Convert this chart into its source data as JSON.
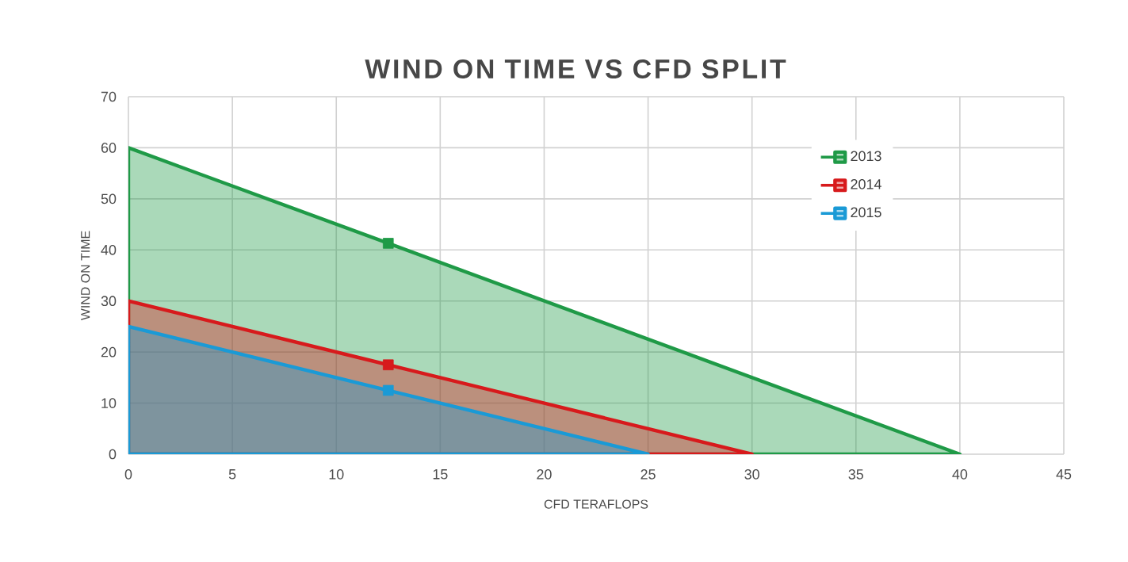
{
  "chart_data": {
    "type": "area",
    "title": "WIND ON TIME VS CFD SPLIT",
    "xlabel": "CFD TERAFLOPS",
    "ylabel": "WIND ON TIME",
    "series": [
      {
        "name": "2013",
        "color": "#1f9a47",
        "x": [
          0,
          12.5,
          40
        ],
        "values": [
          60,
          41.3,
          0
        ]
      },
      {
        "name": "2014",
        "color": "#d71a1c",
        "x": [
          0,
          12.5,
          30
        ],
        "values": [
          30,
          17.5,
          0
        ]
      },
      {
        "name": "2015",
        "color": "#1a9ad6",
        "x": [
          0,
          12.5,
          25
        ],
        "values": [
          25,
          12.5,
          0
        ]
      },
      {
        "type": "scatter",
        "marker": "square",
        "color": "#1f9a47",
        "x": [
          12.5
        ],
        "values": [
          41.3
        ]
      },
      {
        "type": "scatter",
        "marker": "square",
        "color": "#d71a1c",
        "x": [
          12.5
        ],
        "values": [
          17.5
        ]
      },
      {
        "type": "scatter",
        "marker": "square",
        "color": "#1a9ad6",
        "x": [
          12.5
        ],
        "values": [
          12.5
        ]
      }
    ],
    "xlim": [
      0,
      45
    ],
    "xticks": [
      0,
      5,
      10,
      15,
      20,
      25,
      30,
      35,
      40,
      45
    ],
    "ylim": [
      0,
      70
    ],
    "yticks": [
      0,
      10,
      20,
      30,
      40,
      50,
      60,
      70
    ],
    "grid": true,
    "legend": "top right",
    "line_style": "solid"
  }
}
